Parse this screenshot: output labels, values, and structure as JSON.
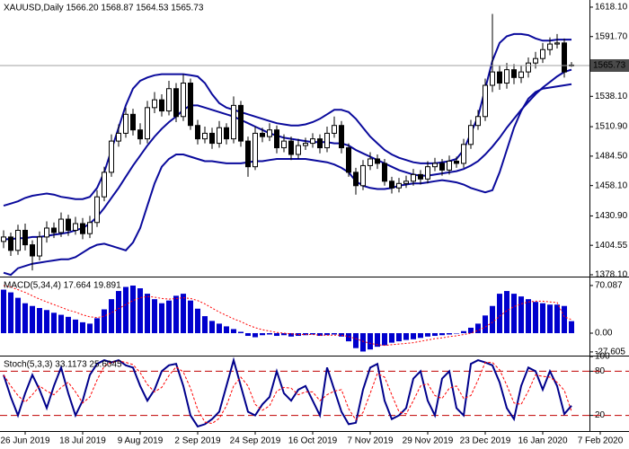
{
  "chart_data": [
    {
      "type": "candlestick",
      "title": "XAUUSD,Daily  1566.20 1568.87 1564.53 1565.73",
      "xlim": [
        -0.5,
        81.5
      ],
      "xticks": [
        {
          "value": 3,
          "label": "26 Jun 2019"
        },
        {
          "value": 11,
          "label": "18 Jul 2019"
        },
        {
          "value": 19,
          "label": "9 Aug 2019"
        },
        {
          "value": 27,
          "label": "2 Sep 2019"
        },
        {
          "value": 35,
          "label": "24 Sep 2019"
        },
        {
          "value": 43,
          "label": "16 Oct 2019"
        },
        {
          "value": 51,
          "label": "7 Nov 2019"
        },
        {
          "value": 59,
          "label": "29 Nov 2019"
        },
        {
          "value": 67,
          "label": "23 Dec 2019"
        },
        {
          "value": 75,
          "label": "16 Jan 2020"
        },
        {
          "value": 83,
          "label": "7 Feb 2020"
        }
      ],
      "ylim": [
        1376.5,
        1624.5
      ],
      "yticks": [
        {
          "value": 1618.1,
          "label": "1618.10"
        },
        {
          "value": 1591.7,
          "label": "1591.70"
        },
        {
          "value": 1538.1,
          "label": "1538.10"
        },
        {
          "value": 1510.9,
          "label": "1510.90"
        },
        {
          "value": 1484.5,
          "label": "1484.50"
        },
        {
          "value": 1458.1,
          "label": "1458.10"
        },
        {
          "value": 1430.9,
          "label": "1430.90"
        },
        1404.55,
        {
          "value": 1378.1,
          "label": "1378.10"
        }
      ],
      "price_line": 1565.73,
      "open": [
        1408,
        1412,
        1400,
        1418,
        1405,
        1395,
        1412,
        1420,
        1416,
        1428,
        1418,
        1424,
        1415,
        1425,
        1448,
        1470,
        1498,
        1505,
        1522,
        1508,
        1500,
        1528,
        1535,
        1525,
        1545,
        1520,
        1550,
        1512,
        1500,
        1505,
        1496,
        1510,
        1500,
        1530,
        1498,
        1475,
        1505,
        1502,
        1508,
        1492,
        1498,
        1486,
        1494,
        1496,
        1500,
        1492,
        1505,
        1512,
        1492,
        1470,
        1458,
        1476,
        1482,
        1478,
        1462,
        1456,
        1460,
        1462,
        1468,
        1464,
        1475,
        1478,
        1472,
        1480,
        1478,
        1495,
        1512,
        1520,
        1548,
        1560,
        1550,
        1562,
        1555,
        1560,
        1568,
        1572,
        1580,
        1585,
        1586,
        1566.2
      ],
      "high": [
        1418,
        1416,
        1423,
        1424,
        1409,
        1417,
        1426,
        1425,
        1434,
        1432,
        1430,
        1429,
        1431,
        1454,
        1475,
        1504,
        1513,
        1528,
        1527,
        1514,
        1534,
        1542,
        1540,
        1552,
        1550,
        1558,
        1554,
        1517,
        1511,
        1510,
        1516,
        1514,
        1538,
        1534,
        1502,
        1511,
        1510,
        1514,
        1512,
        1504,
        1502,
        1500,
        1501,
        1505,
        1504,
        1511,
        1520,
        1516,
        1496,
        1474,
        1481,
        1488,
        1486,
        1482,
        1466,
        1465,
        1467,
        1473,
        1472,
        1480,
        1483,
        1482,
        1485,
        1484,
        1500,
        1517,
        1526,
        1554,
        1612,
        1566,
        1568,
        1567,
        1566,
        1573,
        1578,
        1586,
        1591,
        1594,
        1590,
        1568.87
      ],
      "low": [
        1402,
        1395,
        1396,
        1400,
        1382,
        1391,
        1407,
        1411,
        1412,
        1413,
        1414,
        1410,
        1411,
        1421,
        1444,
        1466,
        1493,
        1501,
        1503,
        1495,
        1496,
        1523,
        1520,
        1521,
        1515,
        1516,
        1508,
        1495,
        1496,
        1491,
        1492,
        1495,
        1496,
        1493,
        1466,
        1472,
        1497,
        1498,
        1487,
        1488,
        1481,
        1482,
        1490,
        1492,
        1487,
        1488,
        1501,
        1487,
        1466,
        1450,
        1454,
        1472,
        1473,
        1458,
        1451,
        1452,
        1456,
        1458,
        1459,
        1460,
        1471,
        1467,
        1468,
        1474,
        1474,
        1491,
        1508,
        1516,
        1542,
        1544,
        1545,
        1549,
        1550,
        1555,
        1563,
        1568,
        1575,
        1581,
        1555,
        1564.53
      ],
      "close": [
        1412,
        1400,
        1418,
        1405,
        1395,
        1412,
        1420,
        1416,
        1428,
        1418,
        1424,
        1415,
        1425,
        1448,
        1470,
        1498,
        1505,
        1522,
        1508,
        1500,
        1528,
        1535,
        1525,
        1545,
        1520,
        1550,
        1512,
        1500,
        1505,
        1496,
        1510,
        1500,
        1530,
        1498,
        1475,
        1505,
        1502,
        1508,
        1492,
        1498,
        1486,
        1494,
        1496,
        1500,
        1492,
        1505,
        1512,
        1492,
        1470,
        1458,
        1476,
        1482,
        1478,
        1462,
        1456,
        1460,
        1462,
        1468,
        1464,
        1475,
        1478,
        1472,
        1480,
        1478,
        1495,
        1512,
        1520,
        1548,
        1560,
        1550,
        1562,
        1555,
        1560,
        1568,
        1572,
        1580,
        1585,
        1586,
        1560,
        1565.73
      ],
      "bands": {
        "color": "#0a0a9c",
        "upper": [
          1440,
          1442,
          1444,
          1447,
          1449,
          1450,
          1451,
          1450,
          1448,
          1447,
          1446,
          1446,
          1448,
          1456,
          1470,
          1490,
          1510,
          1530,
          1545,
          1552,
          1555,
          1557,
          1558,
          1558,
          1558,
          1558,
          1557,
          1556,
          1550,
          1540,
          1532,
          1528,
          1526,
          1524,
          1522,
          1520,
          1518,
          1516,
          1514,
          1513,
          1512,
          1512,
          1513,
          1515,
          1518,
          1522,
          1526,
          1526,
          1524,
          1518,
          1510,
          1502,
          1496,
          1490,
          1486,
          1483,
          1481,
          1479,
          1478,
          1478,
          1478,
          1479,
          1480,
          1482,
          1490,
          1505,
          1520,
          1545,
          1570,
          1586,
          1592,
          1594,
          1594,
          1593,
          1590,
          1588,
          1588,
          1589,
          1589,
          1589
        ],
        "middle": [
          1410,
          1410,
          1411,
          1411,
          1412,
          1412,
          1413,
          1414,
          1415,
          1416,
          1418,
          1420,
          1424,
          1430,
          1438,
          1447,
          1456,
          1466,
          1476,
          1485,
          1494,
          1502,
          1509,
          1515,
          1520,
          1526,
          1530,
          1530,
          1528,
          1526,
          1524,
          1522,
          1520,
          1517,
          1514,
          1511,
          1508,
          1505,
          1503,
          1501,
          1500,
          1499,
          1498,
          1497,
          1497,
          1497,
          1496,
          1496,
          1494,
          1490,
          1487,
          1484,
          1481,
          1478,
          1475,
          1472,
          1470,
          1468,
          1467,
          1467,
          1468,
          1469,
          1470,
          1471,
          1473,
          1476,
          1480,
          1486,
          1493,
          1501,
          1510,
          1518,
          1526,
          1533,
          1540,
          1546,
          1551,
          1556,
          1560,
          1562
        ],
        "lower": [
          1380,
          1378,
          1384,
          1386,
          1388,
          1389,
          1390,
          1391,
          1392,
          1392,
          1394,
          1398,
          1402,
          1405,
          1406,
          1404,
          1402,
          1400,
          1407,
          1420,
          1440,
          1460,
          1475,
          1482,
          1486,
          1486,
          1484,
          1482,
          1480,
          1480,
          1479,
          1478,
          1478,
          1478,
          1479,
          1480,
          1480,
          1481,
          1482,
          1482,
          1482,
          1482,
          1482,
          1481,
          1480,
          1479,
          1477,
          1474,
          1470,
          1462,
          1458,
          1456,
          1455,
          1455,
          1456,
          1458,
          1459,
          1460,
          1460,
          1461,
          1462,
          1463,
          1462,
          1461,
          1459,
          1456,
          1454,
          1452,
          1454,
          1470,
          1490,
          1510,
          1525,
          1536,
          1542,
          1545,
          1546,
          1547,
          1548,
          1549
        ]
      }
    },
    {
      "type": "bar",
      "title": "MACD(5,34,4) 17.664 19.891",
      "color": "#0000cd",
      "ylim": [
        -31.7,
        81.9
      ],
      "yticks": [
        70.087,
        {
          "value": 0,
          "label": "0.00"
        },
        -27.605
      ],
      "values": [
        64,
        60,
        52,
        44,
        40,
        37,
        34,
        30,
        27,
        24,
        20,
        16,
        14,
        22,
        35,
        50,
        62,
        68,
        70,
        66,
        58,
        50,
        44,
        48,
        55,
        58,
        48,
        36,
        25,
        18,
        14,
        10,
        6,
        2,
        -4,
        -6,
        -3,
        -2,
        -4,
        -3,
        -5,
        -4,
        -3,
        -2,
        -4,
        -3,
        -2,
        -5,
        -12,
        -22,
        -27,
        -24,
        -20,
        -18,
        -14,
        -12,
        -10,
        -9,
        -7,
        -5,
        -4,
        -3,
        -2,
        0,
        3,
        8,
        14,
        26,
        40,
        58,
        62,
        58,
        54,
        50,
        46,
        44,
        42,
        42,
        40,
        17.664
      ],
      "signal": {
        "color": "#ff0000",
        "values": [
          70,
          68,
          64,
          60,
          55,
          50,
          46,
          42,
          38,
          34,
          31,
          27,
          24,
          23,
          25,
          30,
          36,
          42,
          48,
          52,
          54,
          53,
          51,
          50,
          51,
          52,
          51,
          48,
          43,
          37,
          31,
          26,
          21,
          17,
          12,
          8,
          5,
          3,
          1,
          0,
          -1,
          -2,
          -2,
          -2,
          -3,
          -3,
          -3,
          -3,
          -5,
          -8,
          -12,
          -15,
          -17,
          -18,
          -17,
          -16,
          -15,
          -14,
          -12,
          -10,
          -8,
          -7,
          -5,
          -4,
          -2,
          0,
          4,
          9,
          16,
          25,
          33,
          39,
          43,
          46,
          47,
          47,
          46,
          45,
          24,
          19.891
        ]
      }
    },
    {
      "type": "line",
      "title": "Stoch(5,3,3) 33.1173 25.6045",
      "ylim": [
        0,
        100
      ],
      "yticks": [
        100,
        80,
        20
      ],
      "levels": [
        20,
        80
      ],
      "level_color": "#c00000",
      "series": [
        {
          "color": "#00008b",
          "values": [
            75,
            45,
            20,
            50,
            75,
            55,
            30,
            60,
            85,
            50,
            20,
            40,
            75,
            90,
            95,
            92,
            95,
            88,
            85,
            60,
            40,
            55,
            80,
            88,
            90,
            60,
            20,
            5,
            8,
            15,
            25,
            60,
            95,
            60,
            25,
            20,
            35,
            45,
            80,
            50,
            40,
            55,
            60,
            40,
            20,
            85,
            55,
            25,
            8,
            10,
            55,
            85,
            90,
            40,
            15,
            20,
            30,
            70,
            80,
            40,
            20,
            70,
            80,
            30,
            20,
            90,
            95,
            92,
            88,
            65,
            30,
            15,
            60,
            85,
            80,
            55,
            80,
            60,
            22,
            33.1173
          ]
        },
        {
          "color": "#ff0000",
          "dash": true,
          "values": [
            75,
            60,
            47,
            38,
            48,
            60,
            53,
            48,
            58,
            65,
            52,
            37,
            45,
            68,
            87,
            92,
            94,
            92,
            89,
            78,
            62,
            52,
            58,
            74,
            86,
            79,
            57,
            28,
            11,
            9,
            16,
            33,
            60,
            72,
            60,
            35,
            27,
            33,
            53,
            58,
            57,
            48,
            52,
            52,
            40,
            48,
            53,
            55,
            29,
            14,
            24,
            50,
            77,
            72,
            48,
            25,
            22,
            40,
            60,
            63,
            47,
            43,
            57,
            60,
            43,
            47,
            68,
            92,
            92,
            82,
            61,
            37,
            35,
            53,
            75,
            73,
            72,
            65,
            54,
            25.6045
          ]
        }
      ]
    }
  ]
}
